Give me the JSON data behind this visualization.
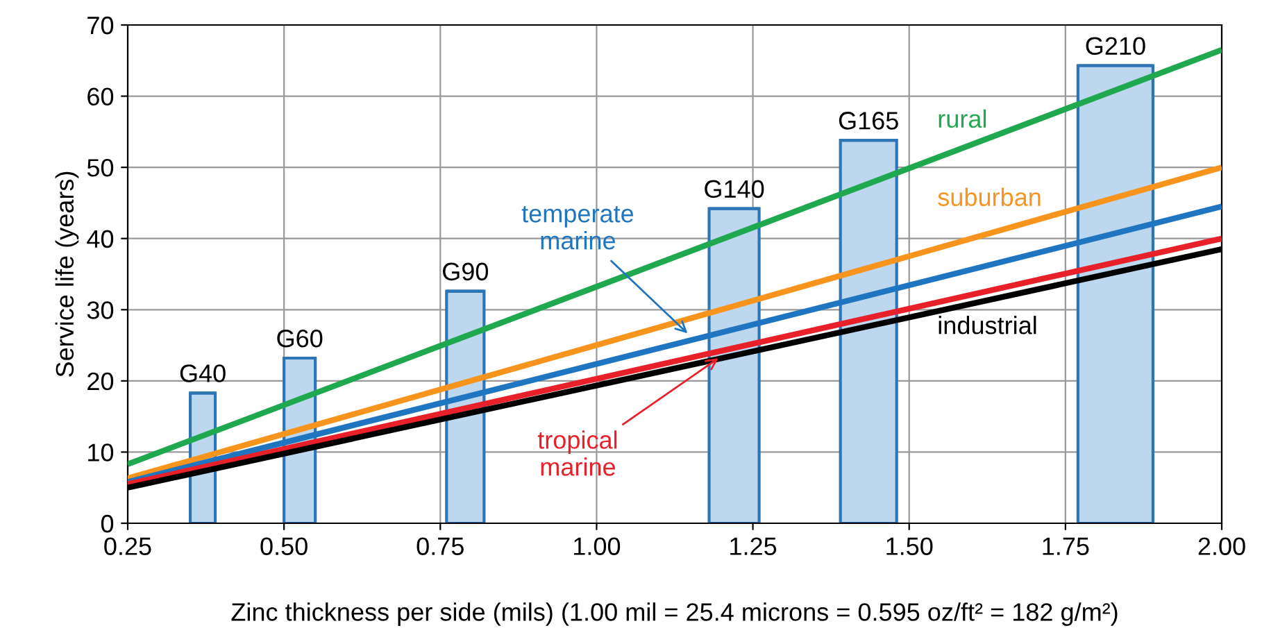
{
  "chart_data": {
    "type": "line",
    "ylabel": "Service life (years)",
    "xlabel": "Zinc thickness per side (mils) (1.00 mil = 25.4 microns = 0.595 oz/ft² = 182 g/m²)",
    "xlim": [
      0.25,
      2.0
    ],
    "ylim": [
      0,
      70
    ],
    "xticks": [
      {
        "value": 0.25,
        "label": "0.25"
      },
      {
        "value": 0.5,
        "label": "0.50"
      },
      {
        "value": 0.75,
        "label": "0.75"
      },
      {
        "value": 1.0,
        "label": "1.00"
      },
      {
        "value": 1.25,
        "label": "1.25"
      },
      {
        "value": 1.5,
        "label": "1.50"
      },
      {
        "value": 1.75,
        "label": "1.75"
      },
      {
        "value": 2.0,
        "label": "2.00"
      }
    ],
    "yticks": [
      0,
      10,
      20,
      30,
      40,
      50,
      60,
      70
    ],
    "grid": true,
    "legend": false,
    "series": [
      {
        "type": "bar",
        "color": "#bdd7ee",
        "x": [
          0.37,
          0.525,
          0.79,
          1.22,
          1.435,
          1.83
        ],
        "values": [
          18.3,
          23.2,
          32.6,
          44.2,
          53.8,
          64.3
        ],
        "xerrors": [
          0.02,
          0.025,
          0.03,
          0.04,
          0.045,
          0.06
        ]
      },
      {
        "name": "rural",
        "color": "#1fa84f",
        "x": [
          0.25,
          2.0
        ],
        "values": [
          8.3,
          66.5
        ]
      },
      {
        "name": "suburban",
        "color": "#f7941d",
        "x": [
          0.25,
          2.0
        ],
        "values": [
          6.3,
          50
        ]
      },
      {
        "name": "temperate marine",
        "color": "#1f75c0",
        "x": [
          0.25,
          2.0
        ],
        "values": [
          5.8,
          44.5
        ]
      },
      {
        "name": "tropical marine",
        "color": "#e8202a",
        "x": [
          0.25,
          2.0
        ],
        "values": [
          5.5,
          40
        ]
      },
      {
        "name": "industrial",
        "color": "#000000",
        "x": [
          0.25,
          2.0
        ],
        "values": [
          5.0,
          38.5
        ]
      }
    ],
    "annotations": [
      {
        "text": "G40",
        "x": 0.37,
        "y": 18.3
      },
      {
        "text": "G60",
        "x": 0.525,
        "y": 23.2
      },
      {
        "text": "G90",
        "x": 0.79,
        "y": 32.6
      },
      {
        "text": "G140",
        "x": 1.22,
        "y": 44.2
      },
      {
        "text": "G165",
        "x": 1.435,
        "y": 53.8
      },
      {
        "text": "G210",
        "x": 1.83,
        "y": 64.3
      }
    ]
  }
}
